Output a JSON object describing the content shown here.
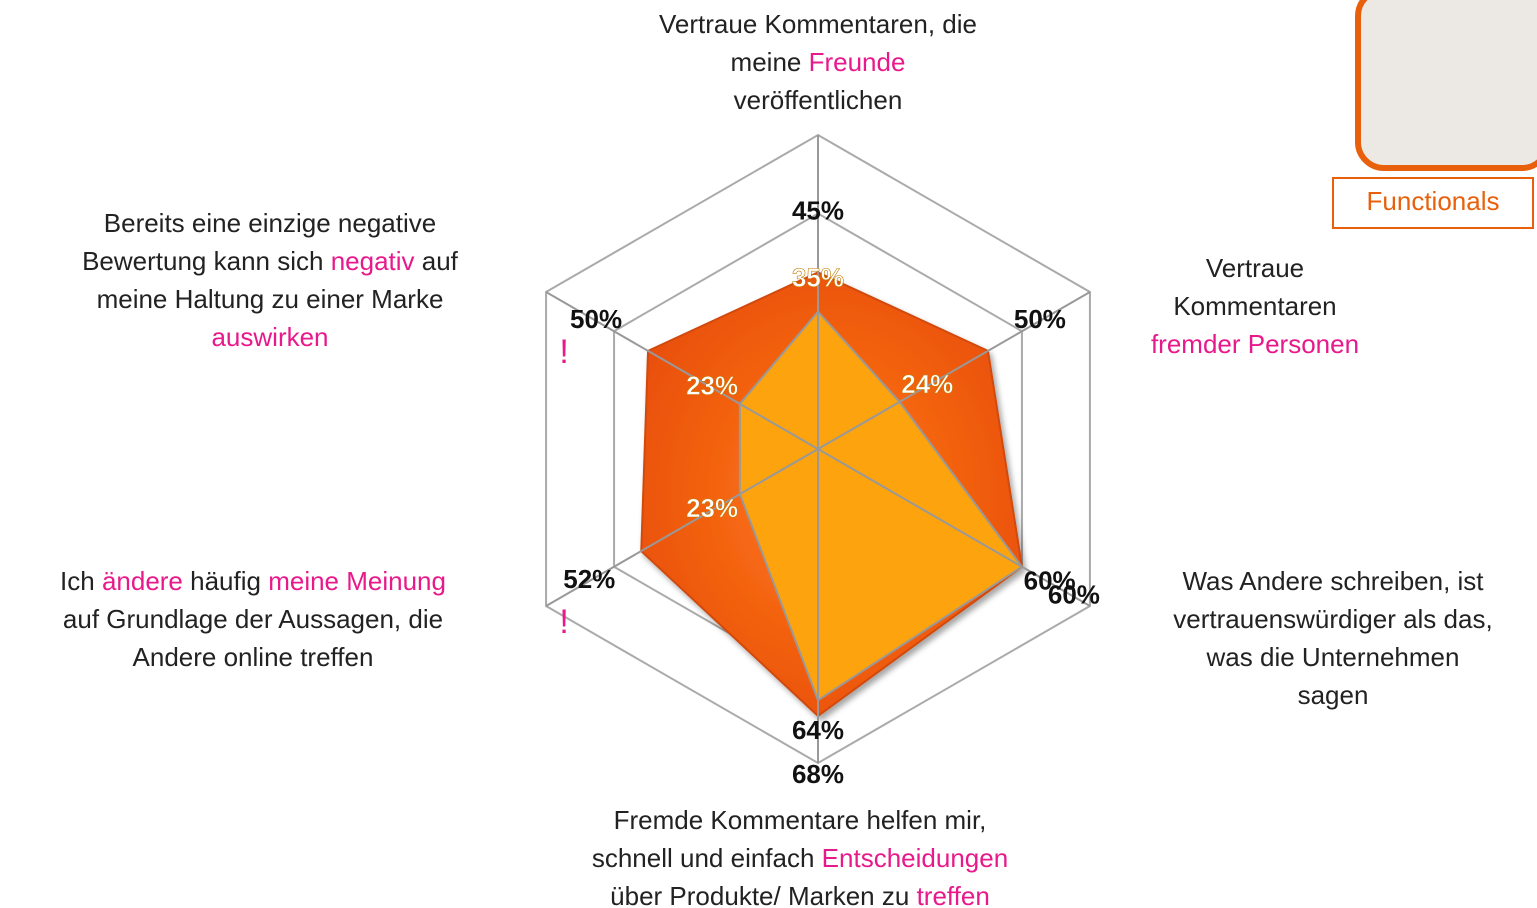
{
  "chart_data": {
    "type": "radar",
    "categories": [
      [
        [
          "Vertraue Kommentaren, die"
        ],
        [
          "meine ",
          {
            "text": "Freunde",
            "color": "#e8198b"
          }
        ],
        [
          "veröffentlichen"
        ]
      ],
      [
        [
          "Vertraue"
        ],
        [
          "Kommentaren"
        ],
        [
          {
            "text": "fremder Personen",
            "color": "#e8198b"
          }
        ]
      ],
      [
        [
          "Was Andere schreiben, ist"
        ],
        [
          "vertrauenswürdiger als das,"
        ],
        [
          "was die Unternehmen"
        ],
        [
          "sagen"
        ]
      ],
      [
        [
          "Fremde Kommentare helfen mir,"
        ],
        [
          "schnell und einfach ",
          {
            "text": "Entscheidungen",
            "color": "#e8198b"
          }
        ],
        [
          "über Produkte/ Marken zu ",
          {
            "text": "treffen",
            "color": "#e8198b"
          }
        ]
      ],
      [
        [
          "Ich ",
          {
            "text": "ändere",
            "color": "#e8198b"
          },
          " häufig ",
          {
            "text": "meine Meinung",
            "color": "#e8198b"
          }
        ],
        [
          "auf Grundlage der Aussagen, die"
        ],
        [
          "Andere online treffen"
        ]
      ],
      [
        [
          "Bereits eine einzige negative"
        ],
        [
          "Bewertung kann sich ",
          {
            "text": "negativ",
            "color": "#e8198b"
          },
          " auf"
        ],
        [
          "meine Haltung zu einer Marke"
        ],
        [
          {
            "text": "auswirken",
            "color": "#e8198b"
          }
        ]
      ]
    ],
    "series": [
      {
        "color": "#f25c0f",
        "values": [
          45,
          50,
          60,
          68,
          52,
          50
        ],
        "value_labels": [
          "45%",
          "50%",
          "60%",
          "68%",
          "52%",
          "50%"
        ]
      },
      {
        "color": "#fca311",
        "values": [
          35,
          24,
          60,
          64,
          23,
          23
        ],
        "value_labels": [
          "35%",
          "24%",
          "60%",
          "64%",
          "23%",
          "23%"
        ]
      }
    ],
    "rlim": [
      0,
      80
    ],
    "grid": true,
    "annotations": [
      {
        "text": "!",
        "axis": 5
      },
      {
        "text": "!",
        "axis": 4
      }
    ],
    "badge": "Functionals"
  }
}
